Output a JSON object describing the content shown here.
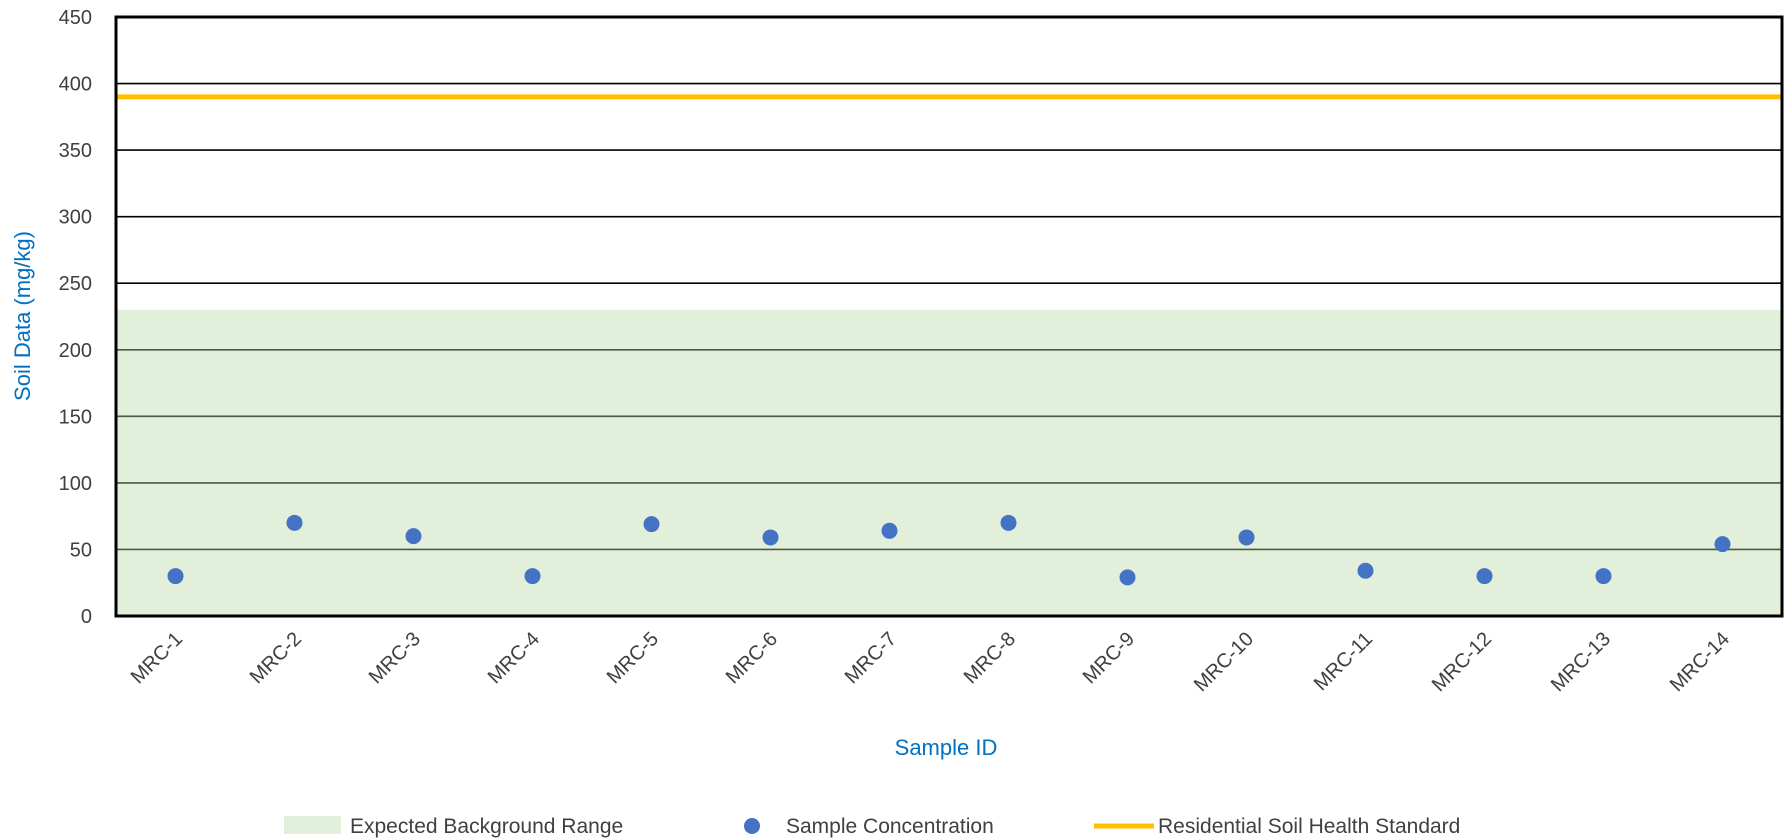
{
  "chart_data": {
    "type": "scatter",
    "xlabel": "Sample ID",
    "ylabel": "Soil Data (mg/kg)",
    "ylim": [
      0,
      450
    ],
    "yticks": [
      0,
      50,
      100,
      150,
      200,
      250,
      300,
      350,
      400,
      450
    ],
    "grid": true,
    "legend_position": "bottom",
    "categories": [
      "MRC-1",
      "MRC-2",
      "MRC-3",
      "MRC-4",
      "MRC-5",
      "MRC-6",
      "MRC-7",
      "MRC-8",
      "MRC-9",
      "MRC-10",
      "MRC-11",
      "MRC-12",
      "MRC-13",
      "MRC-14"
    ],
    "series": [
      {
        "name": "Sample Concentration",
        "type": "scatter",
        "color": "#4472C4",
        "values": [
          30,
          70,
          60,
          30,
          69,
          59,
          64,
          70,
          29,
          59,
          34,
          30,
          30,
          54
        ]
      }
    ],
    "background_range": {
      "name": "Expected Background Range",
      "color": "#E2EFDA",
      "range": [
        0,
        230
      ]
    },
    "standard_line": {
      "name": "Residential Soil Health Standard",
      "color": "#FFC000",
      "value": 390
    },
    "axis_title_color": "#0070C0"
  }
}
